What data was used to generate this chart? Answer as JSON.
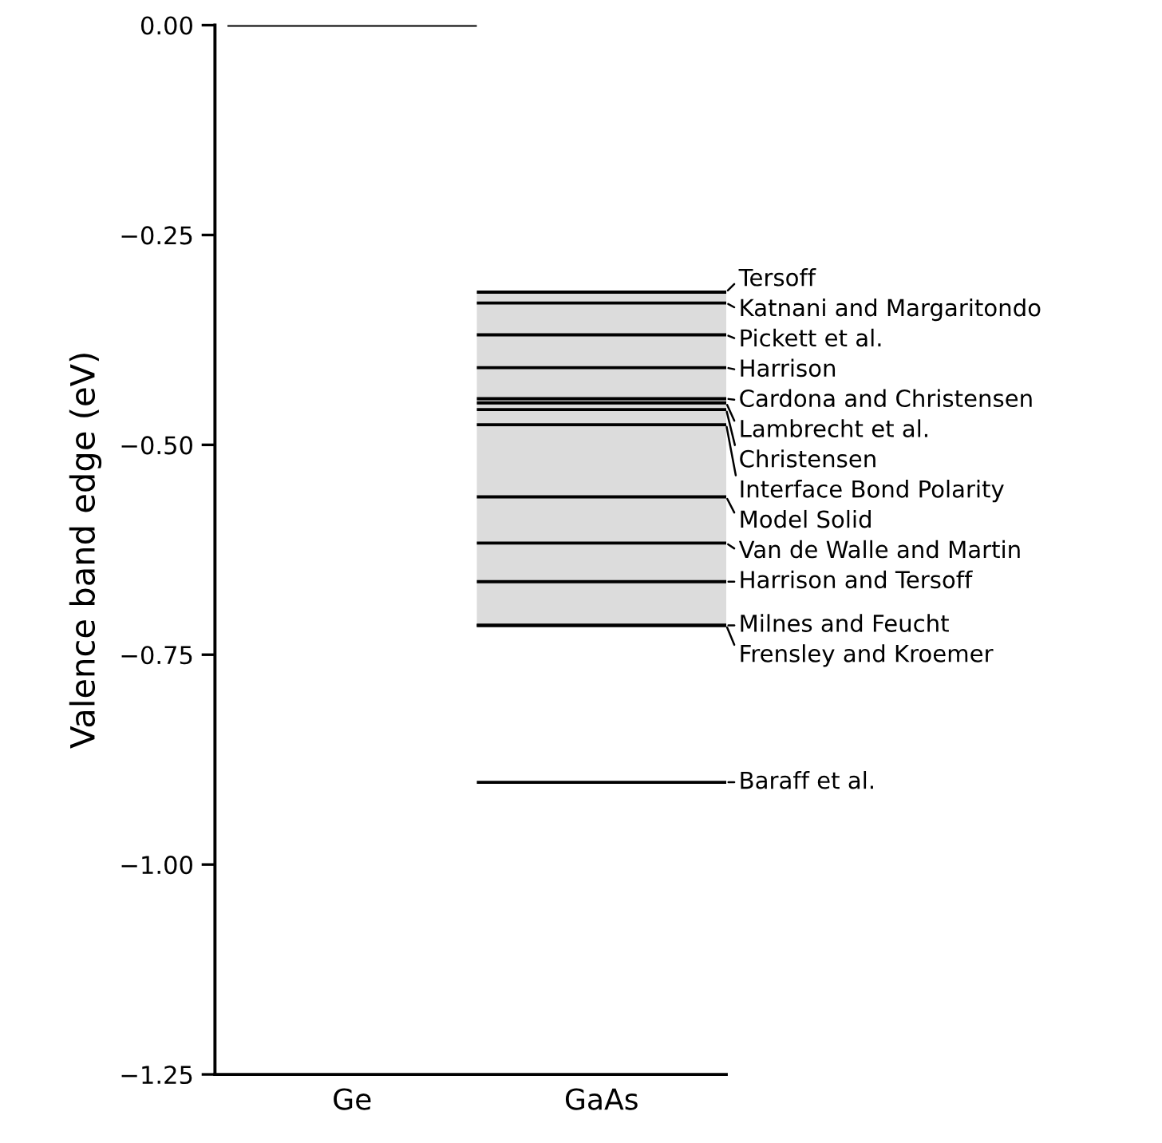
{
  "chart_data": {
    "type": "line",
    "ylabel": "Valence band edge (eV)",
    "categories": [
      null,
      "Ge",
      null,
      "GaAs",
      null
    ],
    "ylim": [
      -1.25,
      0
    ],
    "yticks": [
      {
        "value": 0,
        "label": "0.00"
      },
      {
        "value": -0.25,
        "label": "−0.25"
      },
      {
        "value": -0.5,
        "label": "−0.50"
      },
      {
        "value": -0.75,
        "label": "−0.75"
      },
      {
        "value": -1.0,
        "label": "−1.00"
      },
      {
        "value": -1.25,
        "label": "−1.25"
      }
    ],
    "legend": "right",
    "series": [
      {
        "color": "#000000",
        "values": [
          0,
          0,
          0,
          null,
          null
        ]
      },
      {
        "name": "Tersoff",
        "color": "#000000",
        "values": [
          null,
          null,
          -0.318,
          -0.318,
          -0.318
        ],
        "lower": [
          null,
          null,
          -0.715,
          -0.715,
          -0.715
        ],
        "upper": [
          null,
          null,
          -0.318,
          -0.318,
          -0.318
        ]
      },
      {
        "name": "Katnani and Margaritondo",
        "color": "#000000",
        "values": [
          null,
          null,
          -0.331,
          -0.331,
          -0.331
        ]
      },
      {
        "name": "Pickett et al.",
        "color": "#000000",
        "values": [
          null,
          null,
          -0.369,
          -0.369,
          -0.369
        ]
      },
      {
        "name": "Harrison",
        "color": "#000000",
        "values": [
          null,
          null,
          -0.408,
          -0.408,
          -0.408
        ]
      },
      {
        "name": "Cardona and Christensen",
        "color": "#000000",
        "values": [
          null,
          null,
          -0.445,
          -0.445,
          -0.445
        ]
      },
      {
        "name": "Lambrecht et al.",
        "color": "#000000",
        "values": [
          null,
          null,
          -0.45,
          -0.45,
          -0.45
        ]
      },
      {
        "name": "Christensen",
        "color": "#000000",
        "values": [
          null,
          null,
          -0.458,
          -0.458,
          -0.458
        ]
      },
      {
        "name": "Interface Bond Polarity",
        "color": "#000000",
        "values": [
          null,
          null,
          -0.476,
          -0.476,
          -0.476
        ]
      },
      {
        "name": "Model Solid",
        "color": "#000000",
        "values": [
          null,
          null,
          -0.562,
          -0.562,
          -0.562
        ]
      },
      {
        "name": "Van de Walle and Martin",
        "color": "#000000",
        "values": [
          null,
          null,
          -0.617,
          -0.617,
          -0.617
        ]
      },
      {
        "name": "Harrison and Tersoff",
        "color": "#000000",
        "values": [
          null,
          null,
          -0.663,
          -0.663,
          -0.663
        ]
      },
      {
        "name": "Milnes and Feucht",
        "color": "#000000",
        "values": [
          null,
          null,
          -0.715,
          -0.715,
          -0.715
        ]
      },
      {
        "name": "Frensley and Kroemer",
        "color": "#000000",
        "values": [
          null,
          null,
          -0.715,
          -0.715,
          -0.715
        ]
      },
      {
        "name": "Baraff et al.",
        "color": "#000000",
        "values": [
          null,
          null,
          -0.902,
          -0.902,
          -0.902
        ]
      }
    ]
  }
}
